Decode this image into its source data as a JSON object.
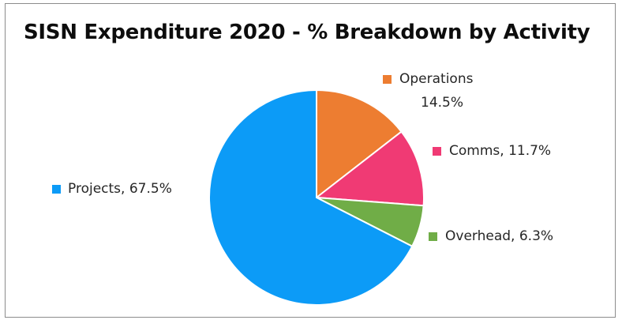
{
  "chart_data": {
    "type": "pie",
    "title": "SISN Expenditure 2020 - % Breakdown by Activity",
    "slices": [
      {
        "name": "Operations",
        "value": 14.5,
        "label_value": "14.5%",
        "color": "#ed7d31"
      },
      {
        "name": "Comms",
        "value": 11.7,
        "label_value": "11.7%",
        "color": "#f03a74"
      },
      {
        "name": "Overhead",
        "value": 6.3,
        "label_value": "6.3%",
        "color": "#70ad47"
      },
      {
        "name": "Projects",
        "value": 67.5,
        "label_value": "67.5%",
        "color": "#0c9bf7"
      }
    ],
    "start_angle_deg": 0,
    "direction": "clockwise",
    "legend": "outside-labels"
  }
}
